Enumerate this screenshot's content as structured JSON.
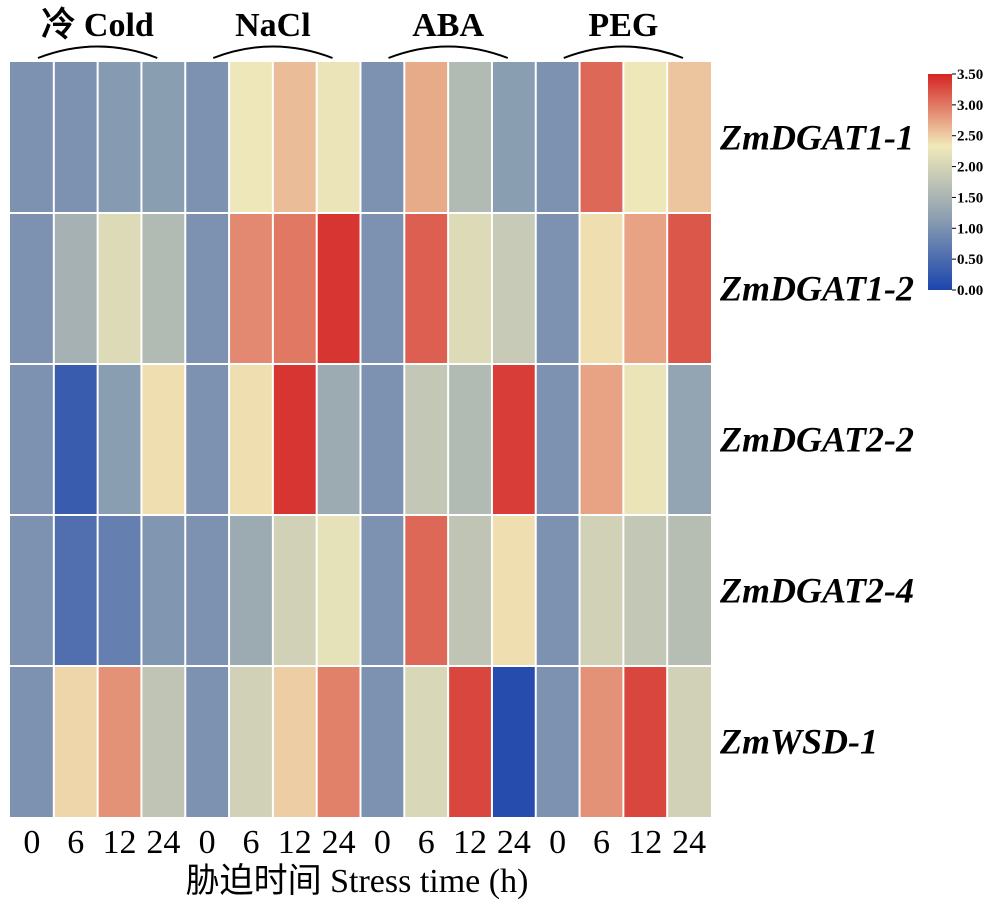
{
  "chart_data": {
    "type": "heatmap",
    "groups": [
      "冷 Cold",
      "NaCl",
      "ABA",
      "PEG"
    ],
    "timepoints": [
      "0",
      "6",
      "12",
      "24"
    ],
    "columns": [
      "0",
      "6",
      "12",
      "24",
      "0",
      "6",
      "12",
      "24",
      "0",
      "6",
      "12",
      "24",
      "0",
      "6",
      "12",
      "24"
    ],
    "rows": [
      "ZmDGAT1-1",
      "ZmDGAT1-2",
      "ZmDGAT2-2",
      "ZmDGAT2-4",
      "ZmWSD-1"
    ],
    "values": [
      [
        1.0,
        1.0,
        1.1,
        1.15,
        1.0,
        2.3,
        2.6,
        2.25,
        1.0,
        2.7,
        1.6,
        1.15,
        1.0,
        3.1,
        2.3,
        2.55
      ],
      [
        1.0,
        1.45,
        2.1,
        1.6,
        1.0,
        2.9,
        3.0,
        3.4,
        1.0,
        3.15,
        2.1,
        1.85,
        1.0,
        2.4,
        2.75,
        3.2
      ],
      [
        1.0,
        0.3,
        1.15,
        2.4,
        1.0,
        2.4,
        3.4,
        1.35,
        1.0,
        1.8,
        1.6,
        3.35,
        1.0,
        2.75,
        2.25,
        1.25
      ],
      [
        1.0,
        0.55,
        0.75,
        1.05,
        1.0,
        1.35,
        1.95,
        2.2,
        1.0,
        3.1,
        1.75,
        2.4,
        1.0,
        1.95,
        1.8,
        1.65
      ],
      [
        1.0,
        2.45,
        2.85,
        1.75,
        1.0,
        1.95,
        2.5,
        2.95,
        1.0,
        2.05,
        3.3,
        0.1,
        1.0,
        2.85,
        3.3,
        1.95
      ]
    ],
    "xlabel": "胁迫时间 Stress time (h)",
    "ylabel": "",
    "colorbar": {
      "min": 0,
      "max": 3.5,
      "ticks": [
        "0.00",
        "0.50",
        "1.00",
        "1.50",
        "2.00",
        "2.50",
        "3.00",
        "3.50"
      ],
      "colors": [
        "#1c45ad",
        "#8c9fb1",
        "#f1e9b9",
        "#d42424"
      ]
    }
  }
}
